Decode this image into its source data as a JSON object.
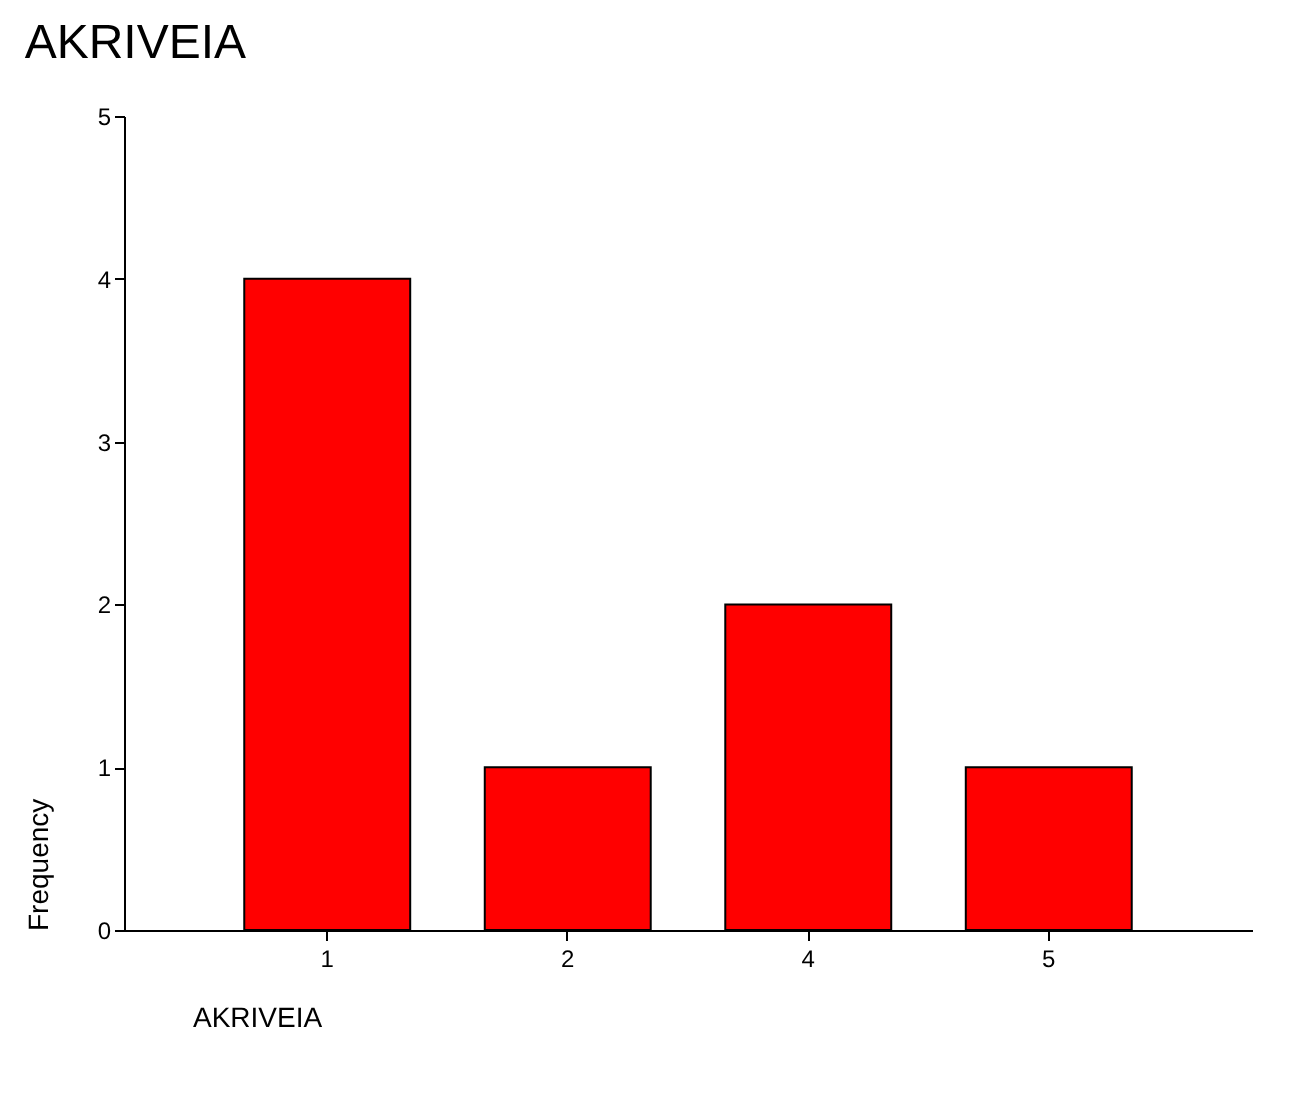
{
  "chart_data": {
    "type": "bar",
    "title": "AKRIVEIA",
    "xlabel": "AKRIVEIA",
    "ylabel": "Frequency",
    "categories": [
      "1",
      "2",
      "4",
      "5"
    ],
    "values": [
      4,
      1,
      2,
      1
    ],
    "color": "#ff0000",
    "ylim": [
      0,
      5
    ],
    "yticks": [
      0,
      1,
      2,
      3,
      4,
      5
    ]
  }
}
